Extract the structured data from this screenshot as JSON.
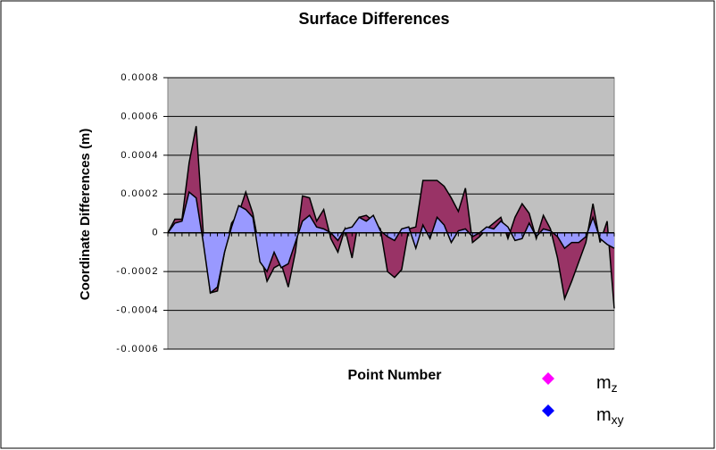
{
  "chart_data": {
    "type": "area",
    "title": "Surface Differences",
    "xlabel": "Point Number",
    "ylabel": "Coordinate Differences (m)",
    "ylim": [
      -0.0006,
      0.0008
    ],
    "yticks": [
      -0.0006,
      -0.0004,
      -0.0002,
      0,
      0.0002,
      0.0004,
      0.0006,
      0.0008
    ],
    "grid": true,
    "series": [
      {
        "name": "m",
        "subscript": "z",
        "color": "#993366",
        "legend_color": "#ff00ff",
        "values": [
          0,
          7e-05,
          7e-05,
          0.00036,
          0.00055,
          0,
          -0.00031,
          -0.0003,
          -0.0001,
          5e-05,
          0.0001,
          0.00021,
          0.0001,
          -0.0001,
          -0.00025,
          -0.00018,
          -0.00016,
          -0.00028,
          -0.0001,
          0.00019,
          0.00018,
          6e-05,
          0.00012,
          -3e-05,
          -0.0001,
          2e-05,
          -0.00013,
          8e-05,
          9e-05,
          6e-05,
          2e-05,
          -0.0002,
          -0.00023,
          -0.00019,
          2e-05,
          3e-05,
          0.00027,
          0.00027,
          0.00027,
          0.00024,
          0.00018,
          0.00011,
          0.00023,
          -5e-05,
          -2e-05,
          2e-05,
          5e-05,
          8e-05,
          -3e-05,
          8e-05,
          0.00015,
          0.0001,
          -3e-05,
          9e-05,
          2e-05,
          -0.00013,
          -0.00034,
          -0.00025,
          -0.00015,
          -5e-05,
          0.00015,
          -5e-05,
          6e-05,
          -0.00039
        ]
      },
      {
        "name": "m",
        "subscript": "xy",
        "color": "#9999ff",
        "legend_color": "#0000ff",
        "values": [
          0,
          5e-05,
          6e-05,
          0.00021,
          0.00018,
          -5e-05,
          -0.00031,
          -0.00028,
          -0.0001,
          3e-05,
          0.00014,
          0.00012,
          8e-05,
          -0.00015,
          -0.0002,
          -0.0001,
          -0.00018,
          -0.00016,
          -5e-05,
          6e-05,
          9e-05,
          3e-05,
          2e-05,
          0,
          -4e-05,
          2e-05,
          3e-05,
          8e-05,
          6e-05,
          9e-05,
          1e-05,
          -2e-05,
          -4e-05,
          2e-05,
          3e-05,
          -8e-05,
          4e-05,
          -3e-05,
          8e-05,
          4e-05,
          -5e-05,
          1e-05,
          2e-05,
          -2e-05,
          0,
          3e-05,
          2e-05,
          6e-05,
          3e-05,
          -4e-05,
          -3e-05,
          5e-05,
          -2e-05,
          2e-05,
          1e-05,
          -2e-05,
          -8e-05,
          -5e-05,
          -5e-05,
          -2e-05,
          8e-05,
          -3e-05,
          -6e-05,
          -8e-05
        ]
      }
    ]
  }
}
